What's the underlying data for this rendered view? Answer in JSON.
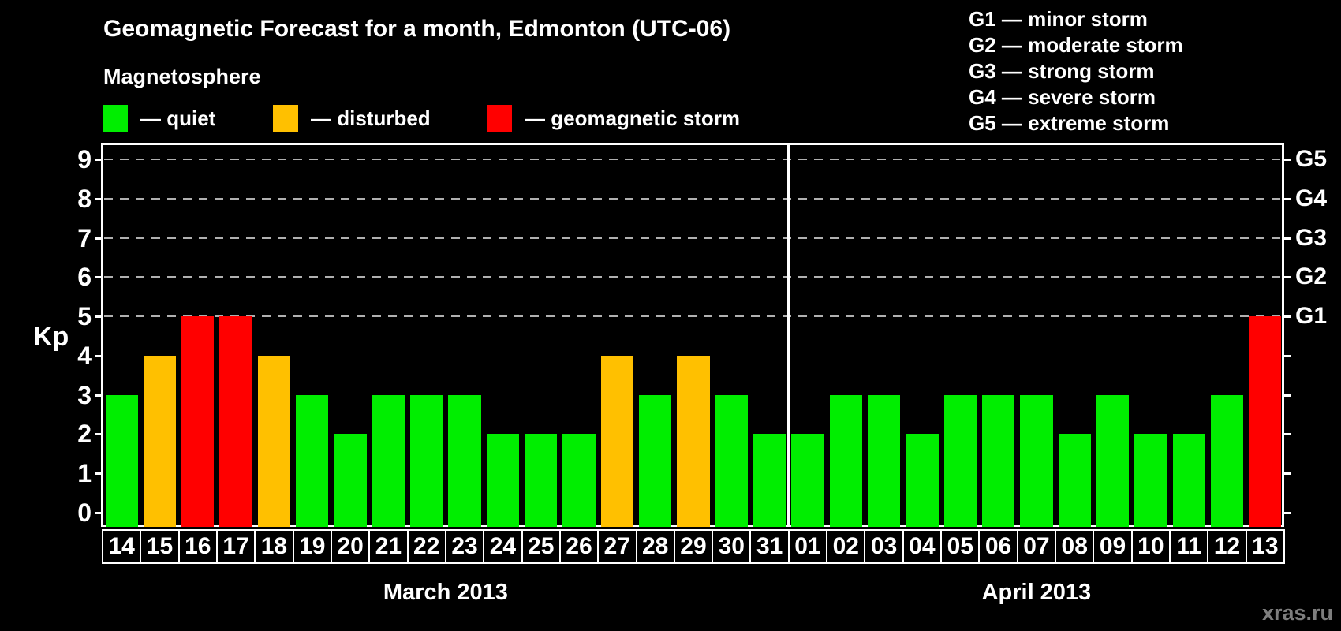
{
  "title": "Geomagnetic Forecast for a month, Edmonton (UTC-06)",
  "subtitle": "Magnetosphere",
  "legend": {
    "items": [
      {
        "label": "— quiet",
        "status": "quiet",
        "color": "#00ee00"
      },
      {
        "label": "— disturbed",
        "status": "disturbed",
        "color": "#ffc000"
      },
      {
        "label": "— geomagnetic storm",
        "status": "storm",
        "color": "#ff0000"
      }
    ]
  },
  "storm_scale_legend": [
    "G1 — minor storm",
    "G2 — moderate storm",
    "G3 — strong storm",
    "G4 — severe storm",
    "G5 — extreme storm"
  ],
  "watermark": "xras.ru",
  "chart_data": {
    "type": "bar",
    "ylabel": "Kp",
    "ylim": [
      0,
      9
    ],
    "yticks": [
      0,
      1,
      2,
      3,
      4,
      5,
      6,
      7,
      8,
      9
    ],
    "right_axis": [
      {
        "kp": 5,
        "label": "G1"
      },
      {
        "kp": 6,
        "label": "G2"
      },
      {
        "kp": 7,
        "label": "G3"
      },
      {
        "kp": 8,
        "label": "G4"
      },
      {
        "kp": 9,
        "label": "G5"
      }
    ],
    "gridlines_kp": [
      5,
      6,
      7,
      8,
      9
    ],
    "grid": "dashed",
    "months": [
      {
        "label": "March 2013",
        "days": [
          {
            "day": "14",
            "kp": 3,
            "status": "quiet"
          },
          {
            "day": "15",
            "kp": 4,
            "status": "disturbed"
          },
          {
            "day": "16",
            "kp": 5,
            "status": "storm"
          },
          {
            "day": "17",
            "kp": 5,
            "status": "storm"
          },
          {
            "day": "18",
            "kp": 4,
            "status": "disturbed"
          },
          {
            "day": "19",
            "kp": 3,
            "status": "quiet"
          },
          {
            "day": "20",
            "kp": 2,
            "status": "quiet"
          },
          {
            "day": "21",
            "kp": 3,
            "status": "quiet"
          },
          {
            "day": "22",
            "kp": 3,
            "status": "quiet"
          },
          {
            "day": "23",
            "kp": 3,
            "status": "quiet"
          },
          {
            "day": "24",
            "kp": 2,
            "status": "quiet"
          },
          {
            "day": "25",
            "kp": 2,
            "status": "quiet"
          },
          {
            "day": "26",
            "kp": 2,
            "status": "quiet"
          },
          {
            "day": "27",
            "kp": 4,
            "status": "disturbed"
          },
          {
            "day": "28",
            "kp": 3,
            "status": "quiet"
          },
          {
            "day": "29",
            "kp": 4,
            "status": "disturbed"
          },
          {
            "day": "30",
            "kp": 3,
            "status": "quiet"
          },
          {
            "day": "31",
            "kp": 2,
            "status": "quiet"
          }
        ]
      },
      {
        "label": "April 2013",
        "days": [
          {
            "day": "01",
            "kp": 2,
            "status": "quiet"
          },
          {
            "day": "02",
            "kp": 3,
            "status": "quiet"
          },
          {
            "day": "03",
            "kp": 3,
            "status": "quiet"
          },
          {
            "day": "04",
            "kp": 2,
            "status": "quiet"
          },
          {
            "day": "05",
            "kp": 3,
            "status": "quiet"
          },
          {
            "day": "06",
            "kp": 3,
            "status": "quiet"
          },
          {
            "day": "07",
            "kp": 3,
            "status": "quiet"
          },
          {
            "day": "08",
            "kp": 2,
            "status": "quiet"
          },
          {
            "day": "09",
            "kp": 3,
            "status": "quiet"
          },
          {
            "day": "10",
            "kp": 2,
            "status": "quiet"
          },
          {
            "day": "11",
            "kp": 2,
            "status": "quiet"
          },
          {
            "day": "12",
            "kp": 3,
            "status": "quiet"
          },
          {
            "day": "13",
            "kp": 5,
            "status": "storm"
          }
        ]
      }
    ]
  }
}
